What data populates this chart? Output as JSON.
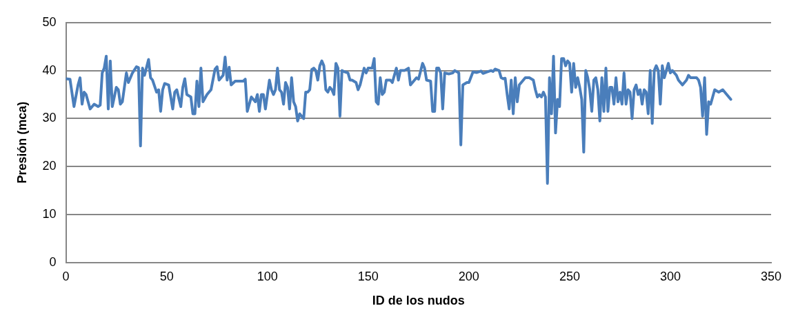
{
  "chart_data": {
    "type": "line",
    "xlabel": "ID de los nudos",
    "ylabel": "Presión (mca)",
    "xlim": [
      0,
      350
    ],
    "xticks": [
      0,
      50,
      100,
      150,
      200,
      250,
      300,
      350
    ],
    "ylim": [
      0,
      50
    ],
    "yticks": [
      0,
      10,
      20,
      30,
      40,
      50
    ],
    "grid": "y",
    "marker": "none",
    "line_style": "solid",
    "series": [
      {
        "color": "#4a7ebb",
        "x": [
          0,
          2,
          4,
          6,
          7,
          8,
          9,
          10,
          12,
          14,
          16,
          17,
          18,
          19,
          20,
          21,
          22,
          23,
          25,
          26,
          27,
          28,
          30,
          31,
          33,
          35,
          36,
          37,
          38,
          39,
          41,
          42,
          43,
          45,
          46,
          47,
          48,
          49,
          51,
          53,
          54,
          55,
          57,
          58,
          59,
          60,
          62,
          63,
          64,
          65,
          66,
          67,
          68,
          70,
          72,
          74,
          75,
          76,
          78,
          79,
          80,
          81,
          82,
          84,
          86,
          88,
          89,
          90,
          92,
          93,
          94,
          95,
          96,
          97,
          98,
          99,
          101,
          102,
          103,
          104,
          105,
          106,
          107,
          108,
          109,
          110,
          111,
          112,
          113,
          114,
          115,
          116,
          117,
          118,
          119,
          120,
          121,
          122,
          123,
          124,
          125,
          126,
          127,
          128,
          129,
          130,
          131,
          132,
          133,
          134,
          135,
          136,
          137,
          138,
          140,
          141,
          142,
          144,
          145,
          146,
          148,
          149,
          150,
          152,
          153,
          154,
          155,
          156,
          157,
          158,
          159,
          161,
          162,
          163,
          164,
          165,
          166,
          168,
          170,
          171,
          172,
          174,
          175,
          177,
          178,
          179,
          181,
          182,
          183,
          184,
          185,
          186,
          187,
          188,
          190,
          192,
          193,
          195,
          196,
          197,
          199,
          200,
          202,
          204,
          206,
          207,
          209,
          211,
          212,
          213,
          215,
          216,
          217,
          218,
          219,
          220,
          221,
          222,
          223,
          224,
          225,
          226,
          228,
          230,
          232,
          233,
          234,
          235,
          236,
          237,
          238,
          239,
          240,
          241,
          242,
          243,
          244,
          245,
          246,
          247,
          248,
          249,
          250,
          251,
          252,
          253,
          254,
          255,
          256,
          257,
          258,
          259,
          260,
          261,
          262,
          263,
          264,
          265,
          266,
          267,
          268,
          269,
          270,
          271,
          272,
          273,
          274,
          275,
          276,
          277,
          278,
          279,
          280,
          281,
          282,
          283,
          284,
          285,
          286,
          287,
          288,
          289,
          290,
          291,
          292,
          293,
          294,
          295,
          296,
          297,
          298,
          299,
          300,
          301,
          303,
          304,
          306,
          308,
          309,
          310,
          312,
          313,
          314,
          315,
          316,
          317,
          318,
          319,
          320,
          322,
          324,
          326,
          328,
          330
        ],
        "values": [
          38.3,
          38.2,
          32.5,
          37,
          38.5,
          33,
          35.5,
          35,
          32,
          33,
          32.5,
          32.8,
          39.5,
          40.5,
          43,
          32,
          42,
          32.5,
          36.5,
          36,
          33,
          33.5,
          39.5,
          37.5,
          39.5,
          40.8,
          40.6,
          24.3,
          40.5,
          39,
          42.3,
          38.5,
          38,
          35.5,
          36,
          31.5,
          36,
          37.3,
          37,
          32,
          35.5,
          36,
          32.5,
          36.5,
          38.3,
          35,
          34.5,
          31,
          31,
          37.8,
          32.5,
          40.5,
          33.5,
          35,
          36,
          40.3,
          40.8,
          38,
          39,
          42.8,
          38,
          40.7,
          37,
          37.8,
          37.8,
          37.8,
          38.2,
          31.5,
          34.5,
          34,
          33.5,
          35,
          31.5,
          35,
          35,
          32,
          38,
          36,
          35,
          36,
          40.5,
          36,
          35.5,
          33,
          37.5,
          36.5,
          32,
          38.5,
          33.5,
          32.5,
          29.5,
          31,
          30.5,
          30,
          35.5,
          35.5,
          36,
          40.2,
          40.5,
          40,
          38,
          41,
          42,
          41,
          36,
          35.5,
          36.5,
          36,
          35,
          41.5,
          40.5,
          30.5,
          40,
          39.8,
          39.5,
          38,
          38,
          37.5,
          36,
          37,
          40.5,
          39.5,
          40.5,
          40.5,
          42.5,
          33.5,
          33,
          38.5,
          35,
          35.5,
          38,
          38,
          37.5,
          39,
          40.5,
          38,
          40,
          40,
          40.5,
          37,
          37.5,
          38.5,
          38.2,
          41.5,
          40.5,
          38,
          37.8,
          31.5,
          31.5,
          40.5,
          40.5,
          39.5,
          32,
          39.5,
          39.3,
          39.5,
          40,
          39.5,
          24.5,
          37,
          37.5,
          37.5,
          39.7,
          39.6,
          39.9,
          39.4,
          39.7,
          40,
          39.8,
          40.3,
          40,
          38.5,
          38.3,
          38.4,
          35,
          32,
          38,
          31,
          38.5,
          33.5,
          37,
          37.5,
          38.5,
          38.5,
          38,
          36,
          34.5,
          35,
          34.5,
          35.5,
          34.5,
          16.5,
          38.5,
          31,
          43,
          27,
          34,
          32.5,
          42.5,
          42.5,
          41,
          42,
          41.5,
          35.5,
          41.5,
          36.5,
          38.5,
          36.5,
          34,
          23,
          40,
          38.5,
          36,
          31.5,
          38,
          38.5,
          36,
          29.5,
          38.5,
          31.5,
          40.5,
          31.5,
          36.5,
          36.5,
          33,
          38.5,
          33.5,
          35.5,
          33,
          39.5,
          33,
          36,
          35.5,
          30,
          36,
          37,
          35,
          36,
          33,
          36,
          35.5,
          31,
          40,
          29,
          40,
          41,
          40,
          33,
          41,
          38.5,
          40,
          41.5,
          39.5,
          40,
          39,
          38,
          37,
          38,
          39,
          38.5,
          38.5,
          38.5,
          38,
          36.5,
          30.5,
          38.5,
          26.7,
          33.5,
          33,
          36,
          35.5,
          36,
          35,
          34
        ]
      }
    ]
  }
}
